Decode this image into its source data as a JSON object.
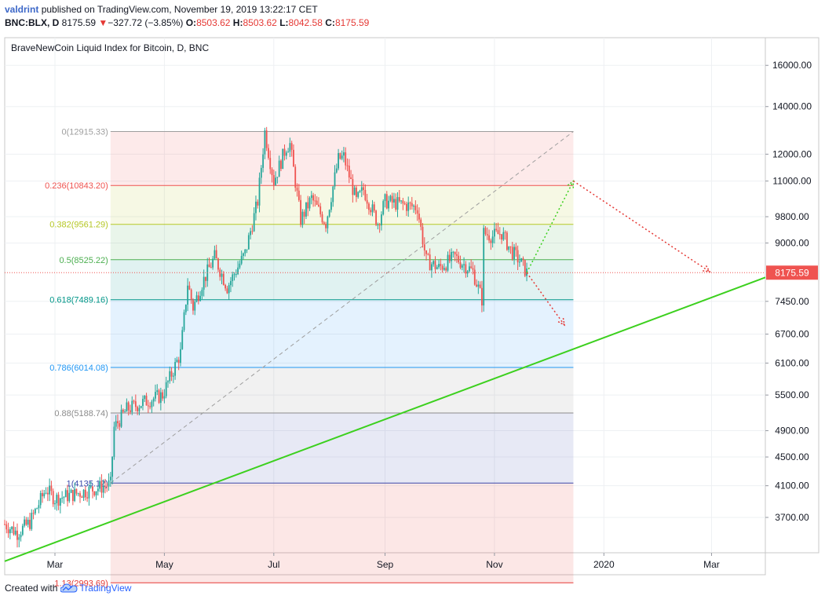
{
  "header": {
    "author": "valdrint",
    "published_text": "published on TradingView.com, November 19, 2019 13:22:17 CET"
  },
  "ohlc": {
    "symbol": "BNC:BLX, D",
    "price": "8175.59",
    "change": "−327.72 (−3.85%)",
    "o_label": "O:",
    "o": "8503.62",
    "h_label": "H:",
    "h": "8503.62",
    "l_label": "L:",
    "l": "8042.58",
    "c_label": "C:",
    "c": "8175.59"
  },
  "footer": {
    "created_with": "Created with",
    "brand": "TradingView"
  },
  "colors": {
    "up": "#26a69a",
    "down": "#ef5350",
    "trendline": "#3cd01e",
    "price_label_bg": "#ef5350"
  },
  "chart_data": {
    "type": "candlestick",
    "title": "BraveNewCoin Liquid Index for Bitcoin, D, BNC",
    "y_scale": "log",
    "ylim": [
      3300,
      17500
    ],
    "y_ticks": [
      3700,
      4100,
      4500,
      4900,
      5500,
      6100,
      6700,
      7450,
      8175.59,
      9000,
      9800,
      11000,
      12000,
      14000,
      16000
    ],
    "y_tick_labels": [
      "3700.00",
      "4100.00",
      "4500.00",
      "4900.00",
      "5500.00",
      "6100.00",
      "6700.00",
      "7450.00",
      "8175.59",
      "9000.00",
      "9800.00",
      "11000.00",
      "12000.00",
      "14000.00",
      "16000.00"
    ],
    "x_range": [
      "2019-02-01",
      "2020-03-31"
    ],
    "x_ticks": [
      {
        "date": "2019-03-01",
        "label": "Mar"
      },
      {
        "date": "2019-05-01",
        "label": "May"
      },
      {
        "date": "2019-07-01",
        "label": "Jul"
      },
      {
        "date": "2019-09-01",
        "label": "Sep"
      },
      {
        "date": "2019-11-01",
        "label": "Nov"
      },
      {
        "date": "2020-01-01",
        "label": "2020"
      },
      {
        "date": "2020-03-01",
        "label": "Mar"
      }
    ],
    "last_price": 8175.59,
    "price_path": [
      {
        "date": "2019-02-01",
        "v": 3620
      },
      {
        "date": "2019-02-08",
        "v": 3520
      },
      {
        "date": "2019-02-15",
        "v": 3640
      },
      {
        "date": "2019-02-24",
        "v": 4060
      },
      {
        "date": "2019-03-01",
        "v": 3930
      },
      {
        "date": "2019-03-10",
        "v": 3980
      },
      {
        "date": "2019-03-20",
        "v": 4040
      },
      {
        "date": "2019-04-01",
        "v": 4120
      },
      {
        "date": "2019-04-03",
        "v": 4950
      },
      {
        "date": "2019-04-10",
        "v": 5250
      },
      {
        "date": "2019-04-20",
        "v": 5380
      },
      {
        "date": "2019-04-30",
        "v": 5500
      },
      {
        "date": "2019-05-10",
        "v": 6300
      },
      {
        "date": "2019-05-14",
        "v": 7900
      },
      {
        "date": "2019-05-17",
        "v": 7300
      },
      {
        "date": "2019-05-22",
        "v": 7900
      },
      {
        "date": "2019-05-29",
        "v": 8600
      },
      {
        "date": "2019-06-05",
        "v": 7800
      },
      {
        "date": "2019-06-15",
        "v": 8700
      },
      {
        "date": "2019-06-22",
        "v": 10300
      },
      {
        "date": "2019-06-26",
        "v": 12900
      },
      {
        "date": "2019-07-01",
        "v": 11000
      },
      {
        "date": "2019-07-08",
        "v": 12300
      },
      {
        "date": "2019-07-10",
        "v": 12400
      },
      {
        "date": "2019-07-16",
        "v": 9700
      },
      {
        "date": "2019-07-22",
        "v": 10400
      },
      {
        "date": "2019-07-30",
        "v": 9600
      },
      {
        "date": "2019-08-06",
        "v": 11800
      },
      {
        "date": "2019-08-09",
        "v": 11900
      },
      {
        "date": "2019-08-16",
        "v": 10300
      },
      {
        "date": "2019-08-20",
        "v": 10700
      },
      {
        "date": "2019-08-28",
        "v": 9600
      },
      {
        "date": "2019-09-01",
        "v": 10300
      },
      {
        "date": "2019-09-10",
        "v": 10200
      },
      {
        "date": "2019-09-19",
        "v": 10100
      },
      {
        "date": "2019-09-24",
        "v": 8500
      },
      {
        "date": "2019-10-01",
        "v": 8300
      },
      {
        "date": "2019-10-10",
        "v": 8600
      },
      {
        "date": "2019-10-20",
        "v": 8200
      },
      {
        "date": "2019-10-25",
        "v": 7500
      },
      {
        "date": "2019-10-26",
        "v": 9300
      },
      {
        "date": "2019-10-31",
        "v": 9200
      },
      {
        "date": "2019-11-05",
        "v": 9300
      },
      {
        "date": "2019-11-10",
        "v": 8800
      },
      {
        "date": "2019-11-15",
        "v": 8500
      },
      {
        "date": "2019-11-19",
        "v": 8175.59
      }
    ],
    "fib_retracement": {
      "start_date": "2019-04-01",
      "end_date": "2019-12-15",
      "levels": [
        {
          "ratio": "0",
          "value": 12915.33,
          "label": "0(12915.33)",
          "color": "#9e9e9e"
        },
        {
          "ratio": "0.236",
          "value": 10843.2,
          "label": "0.236(10843.20)",
          "color": "#ef5350"
        },
        {
          "ratio": "0.382",
          "value": 9561.29,
          "label": "0.382(9561.29)",
          "color": "#b5c724"
        },
        {
          "ratio": "0.5",
          "value": 8525.22,
          "label": "0.5(8525.22)",
          "color": "#4caf50"
        },
        {
          "ratio": "0.618",
          "value": 7489.16,
          "label": "0.618(7489.16)",
          "color": "#009688"
        },
        {
          "ratio": "0.786",
          "value": 6014.08,
          "label": "0.786(6014.08)",
          "color": "#2196f3"
        },
        {
          "ratio": "0.88",
          "value": 5188.74,
          "label": "0.88(5188.74)",
          "color": "#8c8c8c"
        },
        {
          "ratio": "1",
          "value": 4135.12,
          "label": "1(4135.12)",
          "color": "#3949ab"
        },
        {
          "ratio": "1.13",
          "value": 2993.69,
          "label": "1.13(2993.69)",
          "color": "#e53935"
        }
      ]
    },
    "annotations": {
      "trendline": {
        "from": {
          "date": "2019-02-01",
          "v": 3210
        },
        "to": {
          "date": "2020-03-31",
          "v": 8050
        }
      },
      "fib_diagonal": {
        "from": {
          "date": "2019-04-01",
          "v": 4135.12
        },
        "to": {
          "date": "2019-12-15",
          "v": 12915.33
        }
      },
      "price_dotted_level": 8175.59,
      "path_down": [
        {
          "date": "2019-11-19",
          "v": 8175.59
        },
        {
          "date": "2019-12-10",
          "v": 6900
        }
      ],
      "path_up": [
        {
          "date": "2019-11-19",
          "v": 8175.59
        },
        {
          "date": "2019-12-15",
          "v": 11000
        }
      ],
      "path_down_from_peak": [
        {
          "date": "2019-12-15",
          "v": 11000
        },
        {
          "date": "2020-02-29",
          "v": 8200
        }
      ]
    }
  }
}
